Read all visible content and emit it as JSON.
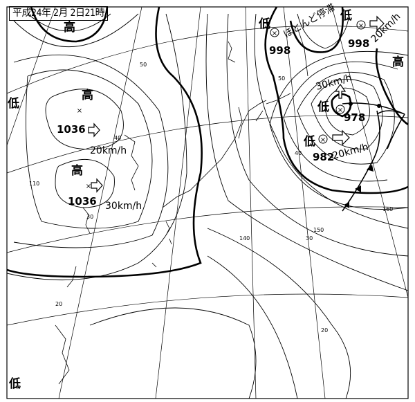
{
  "map": {
    "title": "平成24年 2月 2日21時",
    "high_label": "高",
    "low_label": "低",
    "systems": [
      {
        "type": "high",
        "label": "高",
        "pressure": "1036",
        "motion": "20km/h"
      },
      {
        "type": "high",
        "label": "高",
        "pressure": "1036",
        "motion": "30km/h"
      },
      {
        "type": "high",
        "label": "高"
      },
      {
        "type": "high",
        "label": "高"
      },
      {
        "type": "low",
        "label": "低"
      },
      {
        "type": "low",
        "label": "低",
        "pressure": "998",
        "motion": "ほとんど停滞"
      },
      {
        "type": "low",
        "label": "低",
        "pressure": "998",
        "motion": "20km/h"
      },
      {
        "type": "low",
        "label": "低",
        "pressure": "978",
        "motion": "30km/h"
      },
      {
        "type": "low",
        "label": "低",
        "pressure": "982",
        "motion": "20km/h"
      },
      {
        "type": "low",
        "label": "低"
      }
    ],
    "latitude_labels": [
      "50",
      "40",
      "30",
      "20",
      "50",
      "40",
      "30",
      "20"
    ],
    "longitude_labels": [
      "110",
      "140",
      "150",
      "160"
    ],
    "front": "occluded"
  }
}
